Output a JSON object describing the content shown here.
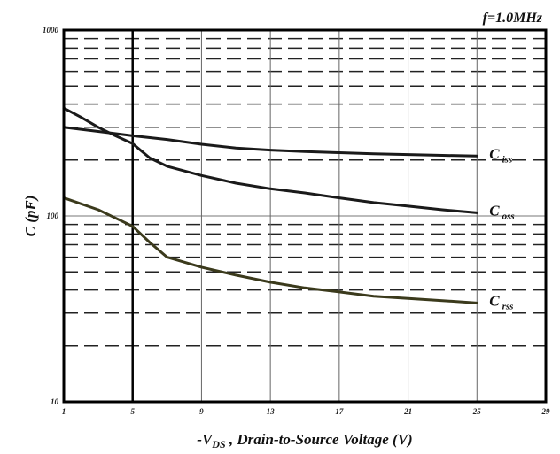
{
  "chart_data": {
    "type": "line",
    "title": "",
    "annotation": "f=1.0MHz",
    "xlabel": "-V DS , Drain-to-Source Voltage (V)",
    "xlabel_parts": {
      "pre": "-V",
      "sub": "DS",
      "post": " , Drain-to-Source Voltage (V)"
    },
    "ylabel": "C (pF)",
    "xlim": [
      1,
      29
    ],
    "ylim": [
      10,
      1000
    ],
    "yscale": "log",
    "x_ticks": [
      1,
      5,
      9,
      13,
      17,
      21,
      25,
      29
    ],
    "y_ticks": [
      10,
      100,
      1000
    ],
    "y_tick_labels": [
      "10",
      "100",
      "1000"
    ],
    "grid": true,
    "series": [
      {
        "name": "Ciss",
        "label_main": "C",
        "label_sub": "iss",
        "color": "#1a1a1a",
        "x": [
          1,
          3,
          5,
          7,
          9,
          11,
          13,
          15,
          17,
          19,
          21,
          23,
          25
        ],
        "y": [
          300,
          285,
          270,
          258,
          243,
          232,
          226,
          222,
          219,
          216,
          214,
          212,
          210
        ]
      },
      {
        "name": "Coss",
        "label_main": "C",
        "label_sub": "oss",
        "color": "#1a1a1a",
        "x": [
          1,
          2,
          3,
          4,
          5,
          6,
          7,
          9,
          11,
          13,
          15,
          17,
          19,
          21,
          23,
          25
        ],
        "y": [
          380,
          340,
          300,
          270,
          245,
          205,
          185,
          165,
          150,
          140,
          133,
          125,
          118,
          113,
          108,
          104
        ]
      },
      {
        "name": "Crss",
        "label_main": "C",
        "label_sub": "rss",
        "color": "#3b3a1c",
        "x": [
          1,
          3,
          5,
          6,
          7,
          9,
          11,
          13,
          15,
          17,
          19,
          21,
          23,
          25
        ],
        "y": [
          125,
          108,
          88,
          72,
          60,
          53,
          48,
          44,
          41,
          39,
          37,
          36,
          35,
          34
        ]
      }
    ]
  }
}
